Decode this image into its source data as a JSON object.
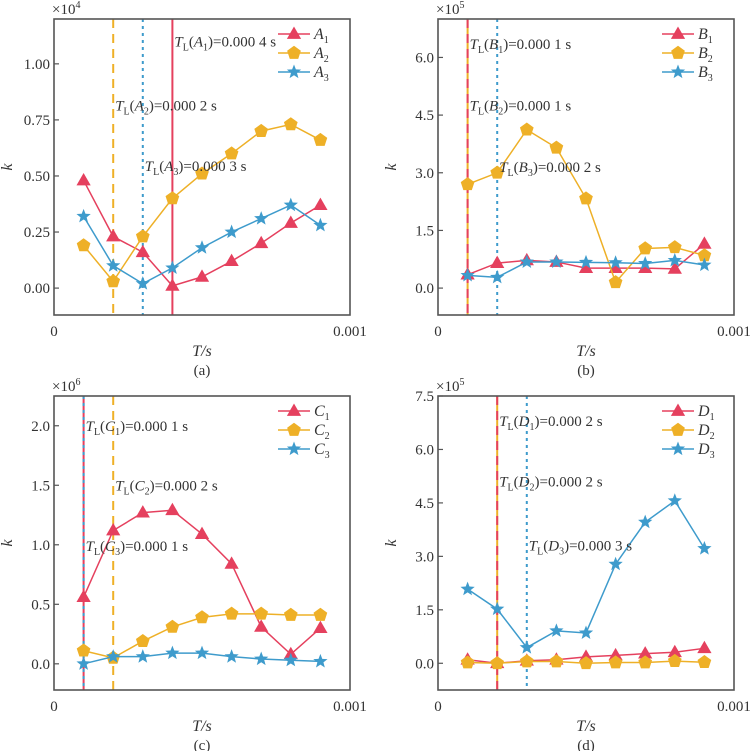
{
  "colors": {
    "red": "#e5405e",
    "yellow": "#eeb027",
    "blue": "#3e9bcc",
    "frame": "#555555",
    "text": "#333333"
  },
  "chart_data": [
    {
      "id": "a",
      "type": "line",
      "panel_label": "(a)",
      "xlabel": "T/s",
      "ylabel": "k",
      "multiplier": "×10",
      "multiplier_exp": "4",
      "xlim": [
        0,
        0.001
      ],
      "ylim": [
        -0.12,
        1.2
      ],
      "xticks": [
        {
          "v": 0,
          "label": "0"
        },
        {
          "v": 0.001,
          "label": "0.001"
        }
      ],
      "yticks": [
        {
          "v": 0,
          "label": "0.00"
        },
        {
          "v": 0.25,
          "label": "0.25"
        },
        {
          "v": 0.5,
          "label": "0.50"
        },
        {
          "v": 0.75,
          "label": "0.75"
        },
        {
          "v": 1.0,
          "label": "1.00"
        }
      ],
      "x": [
        0.0001,
        0.0002,
        0.0003,
        0.0004,
        0.0005,
        0.0006,
        0.0007,
        0.0008,
        0.0009
      ],
      "legend_position": "top-right",
      "series": [
        {
          "name": "A",
          "sub": "1",
          "color": "red",
          "marker": "triangle",
          "values": [
            0.48,
            0.23,
            0.16,
            0.01,
            0.05,
            0.12,
            0.2,
            0.29,
            0.37
          ]
        },
        {
          "name": "A",
          "sub": "2",
          "color": "yellow",
          "marker": "pentagon",
          "values": [
            0.19,
            0.03,
            0.23,
            0.4,
            0.51,
            0.6,
            0.7,
            0.73,
            0.66
          ]
        },
        {
          "name": "A",
          "sub": "3",
          "color": "blue",
          "marker": "star",
          "values": [
            0.32,
            0.1,
            0.02,
            0.09,
            0.18,
            0.25,
            0.31,
            0.37,
            0.28
          ]
        }
      ],
      "vlines": [
        {
          "x": 0.0004,
          "color": "red",
          "style": "solid"
        },
        {
          "x": 0.0002,
          "color": "yellow",
          "style": "dashed"
        },
        {
          "x": 0.0003,
          "color": "blue",
          "style": "dotted"
        }
      ],
      "annotations": [
        {
          "sym": "A",
          "sub": "1",
          "value": "=0.000 4 s",
          "x": 0.0004,
          "y": 1.1
        },
        {
          "sym": "A",
          "sub": "2",
          "value": "=0.000 2 s",
          "x": 0.0002,
          "y": 0.815
        },
        {
          "sym": "A",
          "sub": "3",
          "value": "=0.000 3 s",
          "x": 0.0003,
          "y": 0.545
        }
      ]
    },
    {
      "id": "b",
      "type": "line",
      "panel_label": "(b)",
      "xlabel": "T/s",
      "ylabel": "k",
      "multiplier": "×10",
      "multiplier_exp": "5",
      "xlim": [
        0,
        0.001
      ],
      "ylim": [
        -0.7,
        7.0
      ],
      "xticks": [
        {
          "v": 0,
          "label": "0"
        },
        {
          "v": 0.001,
          "label": "0.001"
        }
      ],
      "yticks": [
        {
          "v": 0,
          "label": "0.0"
        },
        {
          "v": 1.5,
          "label": "1.5"
        },
        {
          "v": 3.0,
          "label": "3.0"
        },
        {
          "v": 4.5,
          "label": "4.5"
        },
        {
          "v": 6.0,
          "label": "6.0"
        }
      ],
      "x": [
        0.0001,
        0.0002,
        0.0003,
        0.0004,
        0.0005,
        0.0006,
        0.0007,
        0.0008,
        0.0009
      ],
      "legend_position": "top-right",
      "series": [
        {
          "name": "B",
          "sub": "1",
          "color": "red",
          "marker": "triangle",
          "values": [
            0.35,
            0.65,
            0.72,
            0.68,
            0.52,
            0.52,
            0.52,
            0.5,
            1.15
          ]
        },
        {
          "name": "B",
          "sub": "2",
          "color": "yellow",
          "marker": "pentagon",
          "values": [
            2.7,
            3.0,
            4.12,
            3.65,
            2.33,
            0.15,
            1.03,
            1.06,
            0.85
          ]
        },
        {
          "name": "B",
          "sub": "3",
          "color": "blue",
          "marker": "star",
          "values": [
            0.33,
            0.28,
            0.68,
            0.68,
            0.67,
            0.66,
            0.64,
            0.72,
            0.6
          ]
        }
      ],
      "vlines": [
        {
          "x": 0.0001,
          "color": "yellow",
          "style": "solid"
        },
        {
          "x": 0.0001,
          "color": "red",
          "style": "dashed"
        },
        {
          "x": 0.0002,
          "color": "blue",
          "style": "dotted"
        }
      ],
      "annotations": [
        {
          "sym": "B",
          "sub": "1",
          "value": "=0.000 1 s",
          "x": 0.0001,
          "y": 6.35
        },
        {
          "sym": "B",
          "sub": "2",
          "value": "=0.000 1 s",
          "x": 0.0001,
          "y": 4.75
        },
        {
          "sym": "B",
          "sub": "3",
          "value": "=0.000 2 s",
          "x": 0.0002,
          "y": 3.15
        }
      ]
    },
    {
      "id": "c",
      "type": "line",
      "panel_label": "(c)",
      "xlabel": "T/s",
      "ylabel": "k",
      "multiplier": "×10",
      "multiplier_exp": "6",
      "xlim": [
        0,
        0.001
      ],
      "ylim": [
        -0.22,
        2.25
      ],
      "xticks": [
        {
          "v": 0,
          "label": "0"
        },
        {
          "v": 0.001,
          "label": "0.001"
        }
      ],
      "yticks": [
        {
          "v": 0,
          "label": "0.0"
        },
        {
          "v": 0.5,
          "label": "0.5"
        },
        {
          "v": 1.0,
          "label": "1.0"
        },
        {
          "v": 1.5,
          "label": "1.5"
        },
        {
          "v": 2.0,
          "label": "2.0"
        }
      ],
      "x": [
        0.0001,
        0.0002,
        0.0003,
        0.0004,
        0.0005,
        0.0006,
        0.0007,
        0.0008,
        0.0009
      ],
      "legend_position": "top-right",
      "series": [
        {
          "name": "C",
          "sub": "1",
          "color": "red",
          "marker": "triangle",
          "values": [
            0.56,
            1.12,
            1.27,
            1.29,
            1.09,
            0.84,
            0.31,
            0.08,
            0.3
          ]
        },
        {
          "name": "C",
          "sub": "2",
          "color": "yellow",
          "marker": "pentagon",
          "values": [
            0.11,
            0.05,
            0.19,
            0.31,
            0.39,
            0.42,
            0.42,
            0.41,
            0.41
          ]
        },
        {
          "name": "C",
          "sub": "3",
          "color": "blue",
          "marker": "star",
          "values": [
            0.0,
            0.06,
            0.06,
            0.09,
            0.09,
            0.06,
            0.04,
            0.03,
            0.02
          ]
        }
      ],
      "vlines": [
        {
          "x": 0.0001,
          "color": "red",
          "style": "solid"
        },
        {
          "x": 0.0002,
          "color": "yellow",
          "style": "dashed"
        },
        {
          "x": 0.0001,
          "color": "blue",
          "style": "dotted"
        }
      ],
      "annotations": [
        {
          "sym": "C",
          "sub": "1",
          "value": "=0.000 1 s",
          "x": 0.0001,
          "y": 2.0
        },
        {
          "sym": "C",
          "sub": "2",
          "value": "=0.000 2 s",
          "x": 0.0002,
          "y": 1.5
        },
        {
          "sym": "C",
          "sub": "3",
          "value": "=0.000 1 s",
          "x": 0.0001,
          "y": 0.99
        }
      ]
    },
    {
      "id": "d",
      "type": "line",
      "panel_label": "(d)",
      "xlabel": "T/s",
      "ylabel": "k",
      "multiplier": "×10",
      "multiplier_exp": "5",
      "xlim": [
        0,
        0.001
      ],
      "ylim": [
        -0.75,
        7.5
      ],
      "xticks": [
        {
          "v": 0,
          "label": "0"
        },
        {
          "v": 0.001,
          "label": "0.001"
        }
      ],
      "yticks": [
        {
          "v": 0,
          "label": "0.0"
        },
        {
          "v": 1.5,
          "label": "1.5"
        },
        {
          "v": 3.0,
          "label": "3.0"
        },
        {
          "v": 4.5,
          "label": "4.5"
        },
        {
          "v": 6.0,
          "label": "6.0"
        },
        {
          "v": 7.5,
          "label": "7.5"
        }
      ],
      "x": [
        0.0001,
        0.0002,
        0.0003,
        0.0004,
        0.0005,
        0.0006,
        0.0007,
        0.0008,
        0.0009
      ],
      "legend_position": "top-right",
      "series": [
        {
          "name": "D",
          "sub": "1",
          "color": "red",
          "marker": "triangle",
          "values": [
            0.1,
            0.0,
            0.07,
            0.1,
            0.18,
            0.22,
            0.27,
            0.31,
            0.42
          ]
        },
        {
          "name": "D",
          "sub": "2",
          "color": "yellow",
          "marker": "pentagon",
          "values": [
            0.02,
            0.0,
            0.05,
            0.05,
            0.0,
            0.02,
            0.02,
            0.06,
            0.03
          ]
        },
        {
          "name": "D",
          "sub": "3",
          "color": "blue",
          "marker": "star",
          "values": [
            2.08,
            1.52,
            0.44,
            0.91,
            0.85,
            2.78,
            3.96,
            4.56,
            3.22
          ]
        }
      ],
      "vlines": [
        {
          "x": 0.0002,
          "color": "yellow",
          "style": "solid"
        },
        {
          "x": 0.0002,
          "color": "red",
          "style": "dashed"
        },
        {
          "x": 0.0003,
          "color": "blue",
          "style": "dotted"
        }
      ],
      "annotations": [
        {
          "sym": "D",
          "sub": "1",
          "value": "=0.000 2 s",
          "x": 0.0002,
          "y": 6.8
        },
        {
          "sym": "D",
          "sub": "2",
          "value": "=0.000 2 s",
          "x": 0.0002,
          "y": 5.1
        },
        {
          "sym": "D",
          "sub": "3",
          "value": "=0.000 3 s",
          "x": 0.0003,
          "y": 3.3
        }
      ]
    }
  ]
}
